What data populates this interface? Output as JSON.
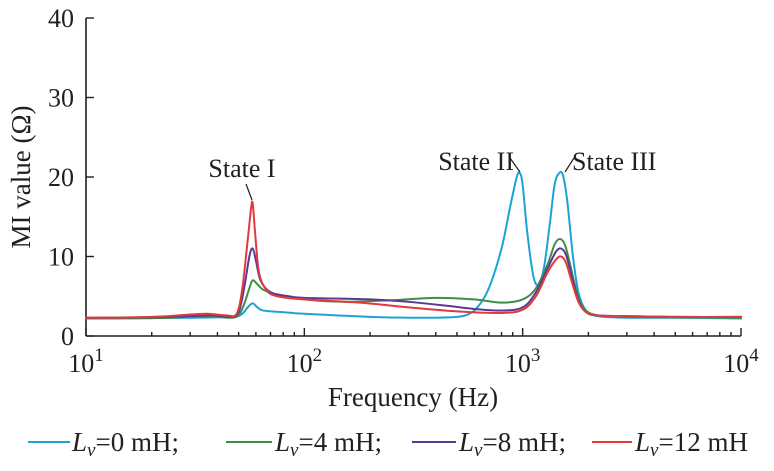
{
  "chart_data": {
    "type": "line",
    "xlabel": "Frequency (Hz)",
    "ylabel": "MI value (Ω)",
    "xscale": "log",
    "xlim": [
      10,
      10000
    ],
    "ylim": [
      0,
      40
    ],
    "x_ticks": [
      {
        "value": 10,
        "base": "10",
        "exp": "1"
      },
      {
        "value": 100,
        "base": "10",
        "exp": "2"
      },
      {
        "value": 1000,
        "base": "10",
        "exp": "3"
      },
      {
        "value": 10000,
        "base": "10",
        "exp": "4"
      }
    ],
    "y_ticks": [
      0,
      10,
      20,
      30,
      40
    ],
    "grid": false,
    "legend_position": "bottom",
    "annotations": [
      {
        "text": "State I",
        "x": 58,
        "y": 16.7
      },
      {
        "text": "State II",
        "x": 970,
        "y": 20.5
      },
      {
        "text": "State III",
        "x": 1520,
        "y": 20.5
      }
    ],
    "series": [
      {
        "name": "Lv=0 mH",
        "legend_symbol": "L",
        "legend_subscript": "v",
        "legend_value": "=0 mH;",
        "color": "#1ba3d6",
        "points": [
          [
            10,
            2.2
          ],
          [
            20,
            2.25
          ],
          [
            30,
            2.3
          ],
          [
            40,
            2.35
          ],
          [
            48,
            2.4
          ],
          [
            52,
            2.8
          ],
          [
            55,
            3.6
          ],
          [
            58,
            4.1
          ],
          [
            61,
            3.6
          ],
          [
            65,
            3.2
          ],
          [
            80,
            3.0
          ],
          [
            100,
            2.8
          ],
          [
            200,
            2.4
          ],
          [
            300,
            2.3
          ],
          [
            400,
            2.3
          ],
          [
            500,
            2.4
          ],
          [
            560,
            2.7
          ],
          [
            620,
            3.6
          ],
          [
            700,
            6.0
          ],
          [
            800,
            11.0
          ],
          [
            880,
            16.5
          ],
          [
            940,
            20.0
          ],
          [
            970,
            20.5
          ],
          [
            1000,
            19.0
          ],
          [
            1050,
            13.0
          ],
          [
            1120,
            7.5
          ],
          [
            1180,
            6.5
          ],
          [
            1250,
            8.5
          ],
          [
            1330,
            14.0
          ],
          [
            1400,
            19.0
          ],
          [
            1470,
            20.5
          ],
          [
            1530,
            20.2
          ],
          [
            1600,
            17.0
          ],
          [
            1700,
            10.0
          ],
          [
            1800,
            5.5
          ],
          [
            1950,
            3.2
          ],
          [
            2200,
            2.5
          ],
          [
            3000,
            2.3
          ],
          [
            5000,
            2.3
          ],
          [
            10000,
            2.2
          ]
        ]
      },
      {
        "name": "Lv=4 mH",
        "legend_symbol": "L",
        "legend_subscript": "v",
        "legend_value": "=4 mH;",
        "color": "#3e8e46",
        "points": [
          [
            10,
            2.2
          ],
          [
            20,
            2.25
          ],
          [
            30,
            2.4
          ],
          [
            38,
            2.45
          ],
          [
            46,
            2.3
          ],
          [
            50,
            2.6
          ],
          [
            53,
            4.0
          ],
          [
            56,
            6.0
          ],
          [
            58,
            7.0
          ],
          [
            61,
            6.5
          ],
          [
            65,
            5.8
          ],
          [
            75,
            5.2
          ],
          [
            100,
            4.6
          ],
          [
            150,
            4.3
          ],
          [
            250,
            4.5
          ],
          [
            400,
            4.8
          ],
          [
            600,
            4.6
          ],
          [
            800,
            4.2
          ],
          [
            1000,
            4.6
          ],
          [
            1150,
            6.0
          ],
          [
            1300,
            9.0
          ],
          [
            1400,
            11.5
          ],
          [
            1480,
            12.2
          ],
          [
            1560,
            11.5
          ],
          [
            1650,
            9.0
          ],
          [
            1750,
            6.0
          ],
          [
            1900,
            3.5
          ],
          [
            2200,
            2.6
          ],
          [
            3000,
            2.4
          ],
          [
            5000,
            2.35
          ],
          [
            10000,
            2.3
          ]
        ]
      },
      {
        "name": "Lv=8 mH",
        "legend_symbol": "L",
        "legend_subscript": "v",
        "legend_value": "=8 mH;",
        "color": "#5b3a91",
        "points": [
          [
            10,
            2.3
          ],
          [
            20,
            2.35
          ],
          [
            30,
            2.5
          ],
          [
            38,
            2.6
          ],
          [
            46,
            2.4
          ],
          [
            50,
            3.0
          ],
          [
            53,
            6.0
          ],
          [
            56,
            10.0
          ],
          [
            58,
            11.0
          ],
          [
            60,
            9.5
          ],
          [
            63,
            7.0
          ],
          [
            70,
            5.5
          ],
          [
            85,
            5.0
          ],
          [
            100,
            4.8
          ],
          [
            200,
            4.6
          ],
          [
            300,
            4.3
          ],
          [
            450,
            3.8
          ],
          [
            600,
            3.4
          ],
          [
            800,
            3.2
          ],
          [
            1000,
            3.6
          ],
          [
            1150,
            5.5
          ],
          [
            1300,
            8.5
          ],
          [
            1420,
            10.6
          ],
          [
            1500,
            11.0
          ],
          [
            1580,
            10.2
          ],
          [
            1680,
            7.5
          ],
          [
            1800,
            4.5
          ],
          [
            1950,
            3.0
          ],
          [
            2200,
            2.6
          ],
          [
            3000,
            2.5
          ],
          [
            5000,
            2.4
          ],
          [
            10000,
            2.4
          ]
        ]
      },
      {
        "name": "Lv=12 mH",
        "legend_symbol": "L",
        "legend_subscript": "v",
        "legend_value": "=12 mH",
        "color": "#e03a3e",
        "points": [
          [
            10,
            2.3
          ],
          [
            20,
            2.4
          ],
          [
            30,
            2.7
          ],
          [
            36,
            2.8
          ],
          [
            44,
            2.6
          ],
          [
            49,
            2.8
          ],
          [
            52,
            6.0
          ],
          [
            55,
            12.0
          ],
          [
            57,
            16.0
          ],
          [
            58,
            16.7
          ],
          [
            59.5,
            13.0
          ],
          [
            62,
            8.0
          ],
          [
            67,
            5.8
          ],
          [
            75,
            5.0
          ],
          [
            100,
            4.6
          ],
          [
            180,
            4.2
          ],
          [
            300,
            3.6
          ],
          [
            500,
            3.1
          ],
          [
            800,
            2.9
          ],
          [
            1000,
            3.3
          ],
          [
            1150,
            5.0
          ],
          [
            1300,
            8.0
          ],
          [
            1420,
            9.6
          ],
          [
            1500,
            10.0
          ],
          [
            1580,
            9.2
          ],
          [
            1680,
            6.8
          ],
          [
            1800,
            4.3
          ],
          [
            1950,
            3.0
          ],
          [
            2200,
            2.6
          ],
          [
            3000,
            2.5
          ],
          [
            5000,
            2.4
          ],
          [
            10000,
            2.4
          ]
        ]
      }
    ]
  }
}
